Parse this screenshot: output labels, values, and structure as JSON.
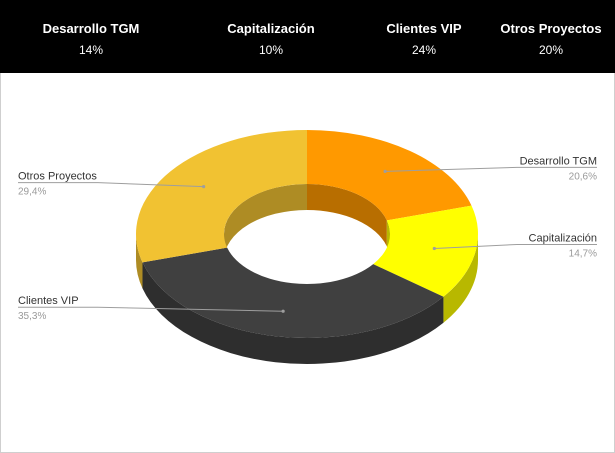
{
  "header": {
    "stats": [
      {
        "label": "Desarrollo TGM",
        "value": "14%"
      },
      {
        "label": "Capitalización",
        "value": "10%"
      },
      {
        "label": "Clientes VIP",
        "value": "24%"
      },
      {
        "label": "Otros Proyectos",
        "value": "20%"
      }
    ]
  },
  "chart_data": {
    "type": "pie",
    "style": "3d-donut",
    "series": [
      {
        "name": "Desarrollo TGM",
        "value": 20.6,
        "label": "20,6%",
        "color": "#ff9900"
      },
      {
        "name": "Capitalización",
        "value": 14.7,
        "label": "14,7%",
        "color": "#ffff00"
      },
      {
        "name": "Clientes VIP",
        "value": 35.3,
        "label": "35,3%",
        "color": "#404040"
      },
      {
        "name": "Otros Proyectos",
        "value": 29.4,
        "label": "29,4%",
        "color": "#f1c232"
      }
    ],
    "legend": "none",
    "start_angle": "top, clockwise"
  }
}
